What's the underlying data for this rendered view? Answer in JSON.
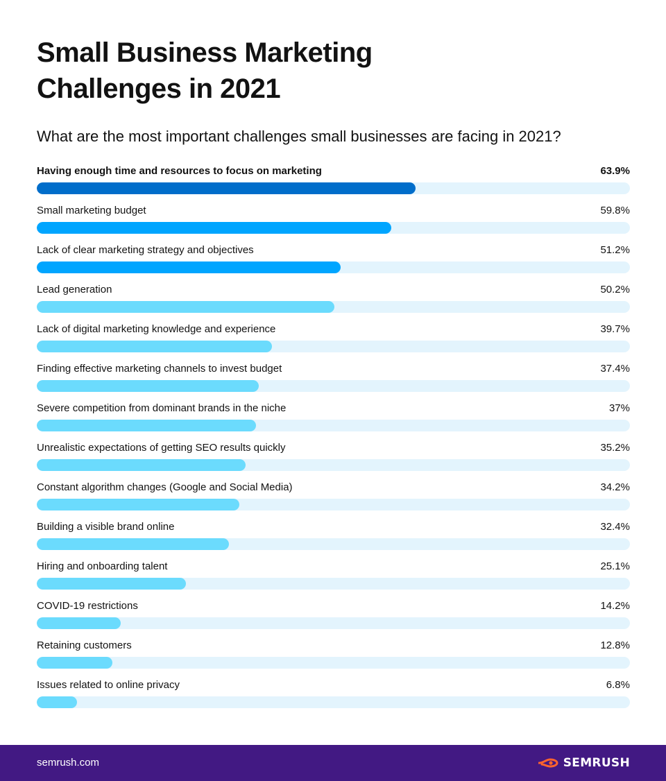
{
  "title": "Small Business Marketing Challenges in 2021",
  "subtitle": "What are the most important challenges small businesses are facing in 2021?",
  "colors": {
    "top": "#006dca",
    "strong": "#00a5ff",
    "light": "#6bdbfd",
    "track": "#e3f4fd",
    "footer": "#421983",
    "brand_mark": "#ff642d"
  },
  "chart_data": {
    "type": "bar",
    "orientation": "horizontal",
    "categories": [
      "Having enough time and resources to focus on marketing",
      "Small marketing budget",
      "Lack of clear marketing strategy and objectives",
      "Lead generation",
      "Lack of digital marketing knowledge and experience",
      "Finding effective marketing channels to invest budget",
      "Severe competition from dominant brands in the niche",
      "Unrealistic expectations of getting SEO results quickly",
      "Constant algorithm changes (Google and Social Media)",
      "Building a visible brand online",
      "Hiring and onboarding talent",
      "COVID-19 restrictions",
      "Retaining customers",
      "Issues related to online privacy"
    ],
    "values": [
      63.9,
      59.8,
      51.2,
      50.2,
      39.7,
      37.4,
      37,
      35.2,
      34.2,
      32.4,
      25.1,
      14.2,
      12.8,
      6.8
    ],
    "value_labels": [
      "63.9%",
      "59.8%",
      "51.2%",
      "50.2%",
      "39.7%",
      "37.4%",
      "37%",
      "35.2%",
      "34.2%",
      "32.4%",
      "25.1%",
      "14.2%",
      "12.8%",
      "6.8%"
    ],
    "bar_color_keys": [
      "top",
      "strong",
      "strong",
      "light",
      "light",
      "light",
      "light",
      "light",
      "light",
      "light",
      "light",
      "light",
      "light",
      "light"
    ],
    "xlim": [
      0,
      100
    ],
    "unit": "%"
  },
  "footer": {
    "url": "semrush.com",
    "brand": "SEMRUSH",
    "brand_icon": "semrush-logo-icon"
  }
}
